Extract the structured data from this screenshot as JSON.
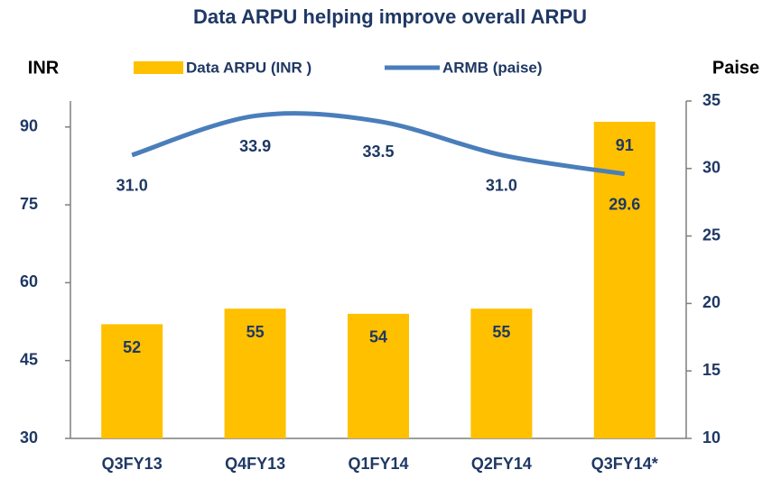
{
  "chart_data": {
    "type": "bar-line",
    "title": "Data ARPU helping improve overall ARPU",
    "y_label": "INR",
    "y2_label": "Paise",
    "categories": [
      "Q3FY13",
      "Q4FY13",
      "Q1FY14",
      "Q2FY14",
      "Q3FY14*"
    ],
    "series": [
      {
        "name": "Data ARPU (INR )",
        "type": "bar",
        "color": "#ffc000",
        "values": [
          52,
          55,
          54,
          55,
          91
        ]
      },
      {
        "name": "ARMB (paise)",
        "type": "line",
        "axis": "y2",
        "color": "#4a7ebb",
        "values": [
          31.0,
          33.9,
          33.5,
          31.0,
          29.6
        ],
        "value_labels": [
          "31.0",
          "33.9",
          "33.5",
          "31.0",
          "29.6"
        ]
      }
    ],
    "ylim": [
      30,
      95
    ],
    "yticks": [
      30,
      45,
      60,
      75,
      90
    ],
    "y2lim": [
      10,
      35
    ],
    "y2ticks": [
      10,
      15,
      20,
      25,
      30,
      35
    ]
  }
}
